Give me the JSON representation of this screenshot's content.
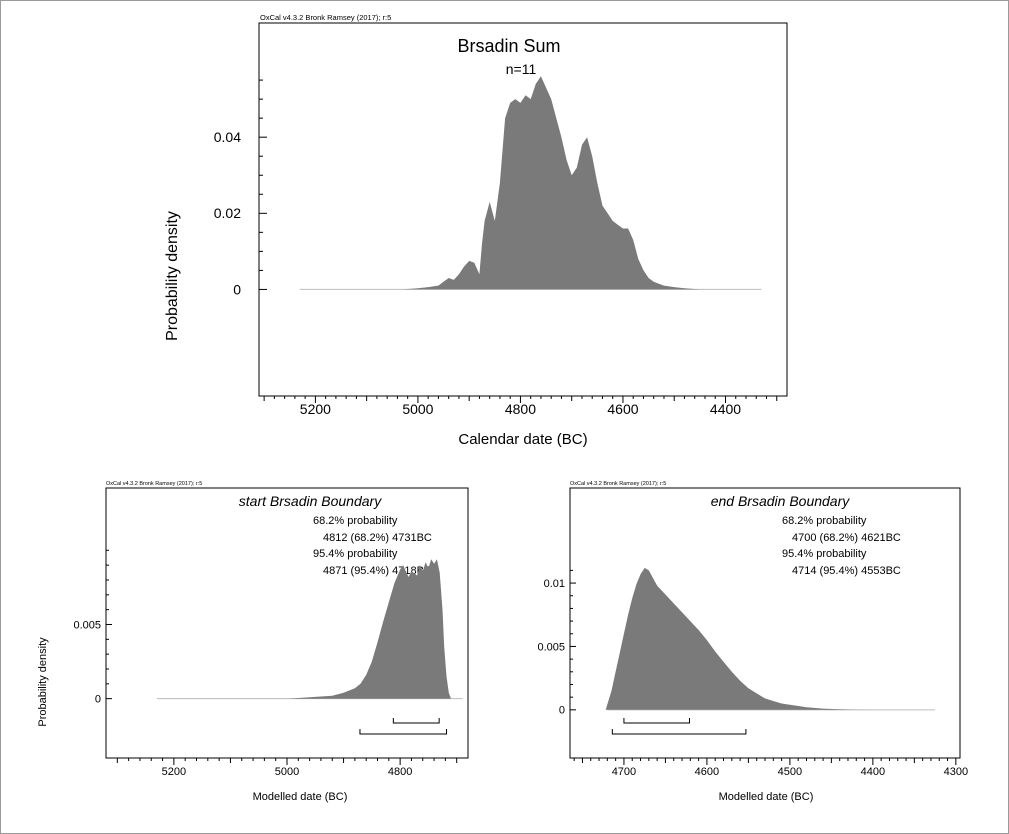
{
  "chart_data": [
    {
      "id": "sum",
      "type": "area",
      "credit": "OxCal v4.3.2 Bronk Ramsey (2017); r:5",
      "title": "Brsadin Sum",
      "subtitle": "n=11",
      "xlabel": "Calendar date (BC)",
      "ylabel": "Probability density",
      "xlim": [
        5310,
        4280
      ],
      "ylim": [
        -0.028,
        0.07
      ],
      "x_ticks": [
        5200,
        5000,
        4800,
        4600,
        4400
      ],
      "x_minor_step": 20,
      "y_ticks": [
        0,
        0.02,
        0.04
      ],
      "y_tick_labels": [
        "0",
        "0.02",
        "0.04"
      ],
      "y_minor_step": 0.005,
      "y_minor_range": [
        0,
        0.058
      ],
      "baseline_range": [
        5230,
        4330
      ],
      "series": [
        {
          "x": [
            5030,
            5000,
            4980,
            4960,
            4950,
            4940,
            4930,
            4920,
            4910,
            4900,
            4890,
            4880,
            4875,
            4870,
            4860,
            4850,
            4840,
            4830,
            4820,
            4810,
            4800,
            4790,
            4780,
            4770,
            4760,
            4750,
            4740,
            4730,
            4720,
            4710,
            4700,
            4690,
            4680,
            4670,
            4660,
            4650,
            4640,
            4630,
            4620,
            4610,
            4600,
            4590,
            4580,
            4570,
            4560,
            4550,
            4540,
            4530,
            4520,
            4500,
            4480,
            4460,
            4450
          ],
          "y": [
            0,
            0.0003,
            0.0006,
            0.001,
            0.002,
            0.003,
            0.0025,
            0.004,
            0.006,
            0.0075,
            0.007,
            0.004,
            0.012,
            0.018,
            0.023,
            0.018,
            0.028,
            0.045,
            0.049,
            0.05,
            0.049,
            0.051,
            0.05,
            0.054,
            0.056,
            0.053,
            0.05,
            0.045,
            0.04,
            0.034,
            0.03,
            0.032,
            0.038,
            0.04,
            0.035,
            0.028,
            0.022,
            0.02,
            0.018,
            0.017,
            0.016,
            0.016,
            0.013,
            0.008,
            0.005,
            0.003,
            0.002,
            0.0015,
            0.001,
            0.0006,
            0.0003,
            0.0001,
            0
          ]
        }
      ],
      "ranges": []
    },
    {
      "id": "start",
      "type": "area",
      "credit": "OxCal v4.3.2 Bronk Ramsey (2017); r:5",
      "title": "start Brsadin Boundary",
      "xlabel": "Modelled date (BC)",
      "ylabel": "Probability density",
      "annotations": [
        "68.2% probability",
        "4812 (68.2%) 4731BC",
        "95.4% probability",
        "4871 (95.4%) 4718BC"
      ],
      "xlim": [
        5320,
        4680
      ],
      "ylim": [
        -0.004,
        0.0142
      ],
      "x_ticks": [
        5200,
        5000,
        4800
      ],
      "x_minor_step": 20,
      "y_ticks": [
        0,
        0.005
      ],
      "y_tick_labels": [
        "0",
        "0.005"
      ],
      "y_minor_step": 0.001,
      "y_minor_range": [
        0,
        0.01
      ],
      "baseline_range": [
        5230,
        4690
      ],
      "series": [
        {
          "x": [
            5000,
            4960,
            4920,
            4900,
            4880,
            4870,
            4860,
            4850,
            4840,
            4830,
            4820,
            4810,
            4800,
            4795,
            4790,
            4785,
            4780,
            4770,
            4765,
            4760,
            4755,
            4750,
            4745,
            4740,
            4735,
            4730,
            4725,
            4722,
            4718,
            4714,
            4710
          ],
          "y": [
            0,
            0.0001,
            0.0002,
            0.0004,
            0.0007,
            0.001,
            0.0016,
            0.0025,
            0.0038,
            0.0052,
            0.0065,
            0.0078,
            0.0087,
            0.009,
            0.0086,
            0.0082,
            0.0086,
            0.0083,
            0.009,
            0.0086,
            0.0092,
            0.0088,
            0.0094,
            0.0091,
            0.0094,
            0.0085,
            0.006,
            0.0035,
            0.0015,
            0.0004,
            0
          ]
        }
      ],
      "ranges": [
        {
          "level": "68.2%",
          "from": 4812,
          "to": 4731
        },
        {
          "level": "95.4%",
          "from": 4871,
          "to": 4718
        }
      ]
    },
    {
      "id": "end",
      "type": "area",
      "credit": "OxCal v4.3.2 Bronk Ramsey (2017); r:5",
      "title": "end Brsadin Boundary",
      "xlabel": "Modelled date (BC)",
      "ylabel": "",
      "annotations": [
        "68.2% probability",
        "4700 (68.2%) 4621BC",
        "95.4% probability",
        "4714 (95.4%) 4553BC"
      ],
      "xlim": [
        4765,
        4295
      ],
      "ylim": [
        -0.0038,
        0.0175
      ],
      "x_ticks": [
        4700,
        4600,
        4500,
        4400,
        4300
      ],
      "x_minor_step": 10,
      "y_ticks": [
        0,
        0.005,
        0.01
      ],
      "y_tick_labels": [
        "0",
        "0.005",
        "0.01"
      ],
      "y_minor_step": 0.001,
      "y_minor_range": [
        0,
        0.011
      ],
      "baseline_range": [
        4720,
        4325
      ],
      "series": [
        {
          "x": [
            4722,
            4715,
            4710,
            4705,
            4700,
            4695,
            4690,
            4685,
            4680,
            4675,
            4670,
            4665,
            4660,
            4650,
            4640,
            4630,
            4620,
            4610,
            4600,
            4590,
            4580,
            4570,
            4560,
            4550,
            4540,
            4530,
            4520,
            4510,
            4500,
            4480,
            4460,
            4440,
            4420,
            4400,
            4380
          ],
          "y": [
            0,
            0.0015,
            0.003,
            0.0045,
            0.006,
            0.0075,
            0.0088,
            0.0099,
            0.0107,
            0.0112,
            0.011,
            0.0104,
            0.0098,
            0.0091,
            0.0084,
            0.0077,
            0.007,
            0.0063,
            0.0055,
            0.0046,
            0.0038,
            0.003,
            0.0023,
            0.0017,
            0.0013,
            0.0009,
            0.0007,
            0.0005,
            0.0004,
            0.0002,
            0.0001,
            5e-05,
            2e-05,
            1e-05,
            0
          ]
        }
      ],
      "ranges": [
        {
          "level": "68.2%",
          "from": 4700,
          "to": 4621
        },
        {
          "level": "95.4%",
          "from": 4714,
          "to": 4553
        }
      ]
    }
  ]
}
